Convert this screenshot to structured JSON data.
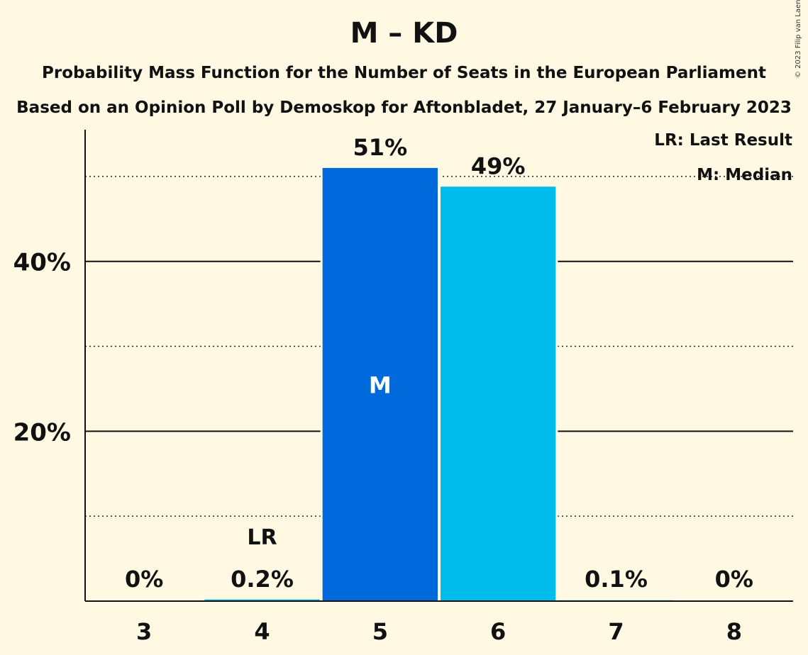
{
  "title": "M – KD",
  "subtitle1": "Probability Mass Function for the Number of Seats in the European Parliament",
  "subtitle2": "Based on an Opinion Poll by Demoskop for Aftonbladet, 27 January–6 February 2023",
  "copyright": "© 2023 Filip van Laenen",
  "legend": {
    "last_result": "LR: Last Result",
    "median": "M: Median"
  },
  "colors": {
    "background": "#FFF9E4",
    "median_bar": "#0069DB",
    "other_bar": "#00BDED",
    "text": "#111111"
  },
  "chart_data": {
    "type": "bar",
    "categories": [
      "3",
      "4",
      "5",
      "6",
      "7",
      "8"
    ],
    "values": [
      0,
      0.2,
      51,
      48.8,
      0.1,
      0
    ],
    "value_labels": [
      "0%",
      "0.2%",
      "51%",
      "49%",
      "0.1%",
      "0%"
    ],
    "yticks": [
      20,
      40
    ],
    "ytick_labels": [
      "20%",
      "40%"
    ],
    "dotted_gridlines": [
      10,
      30,
      50
    ],
    "ylim": [
      0,
      55.5
    ],
    "median_category": "5",
    "median_marker": "M",
    "last_result_category": "4",
    "last_result_marker": "LR",
    "xlabel": "",
    "ylabel": ""
  }
}
